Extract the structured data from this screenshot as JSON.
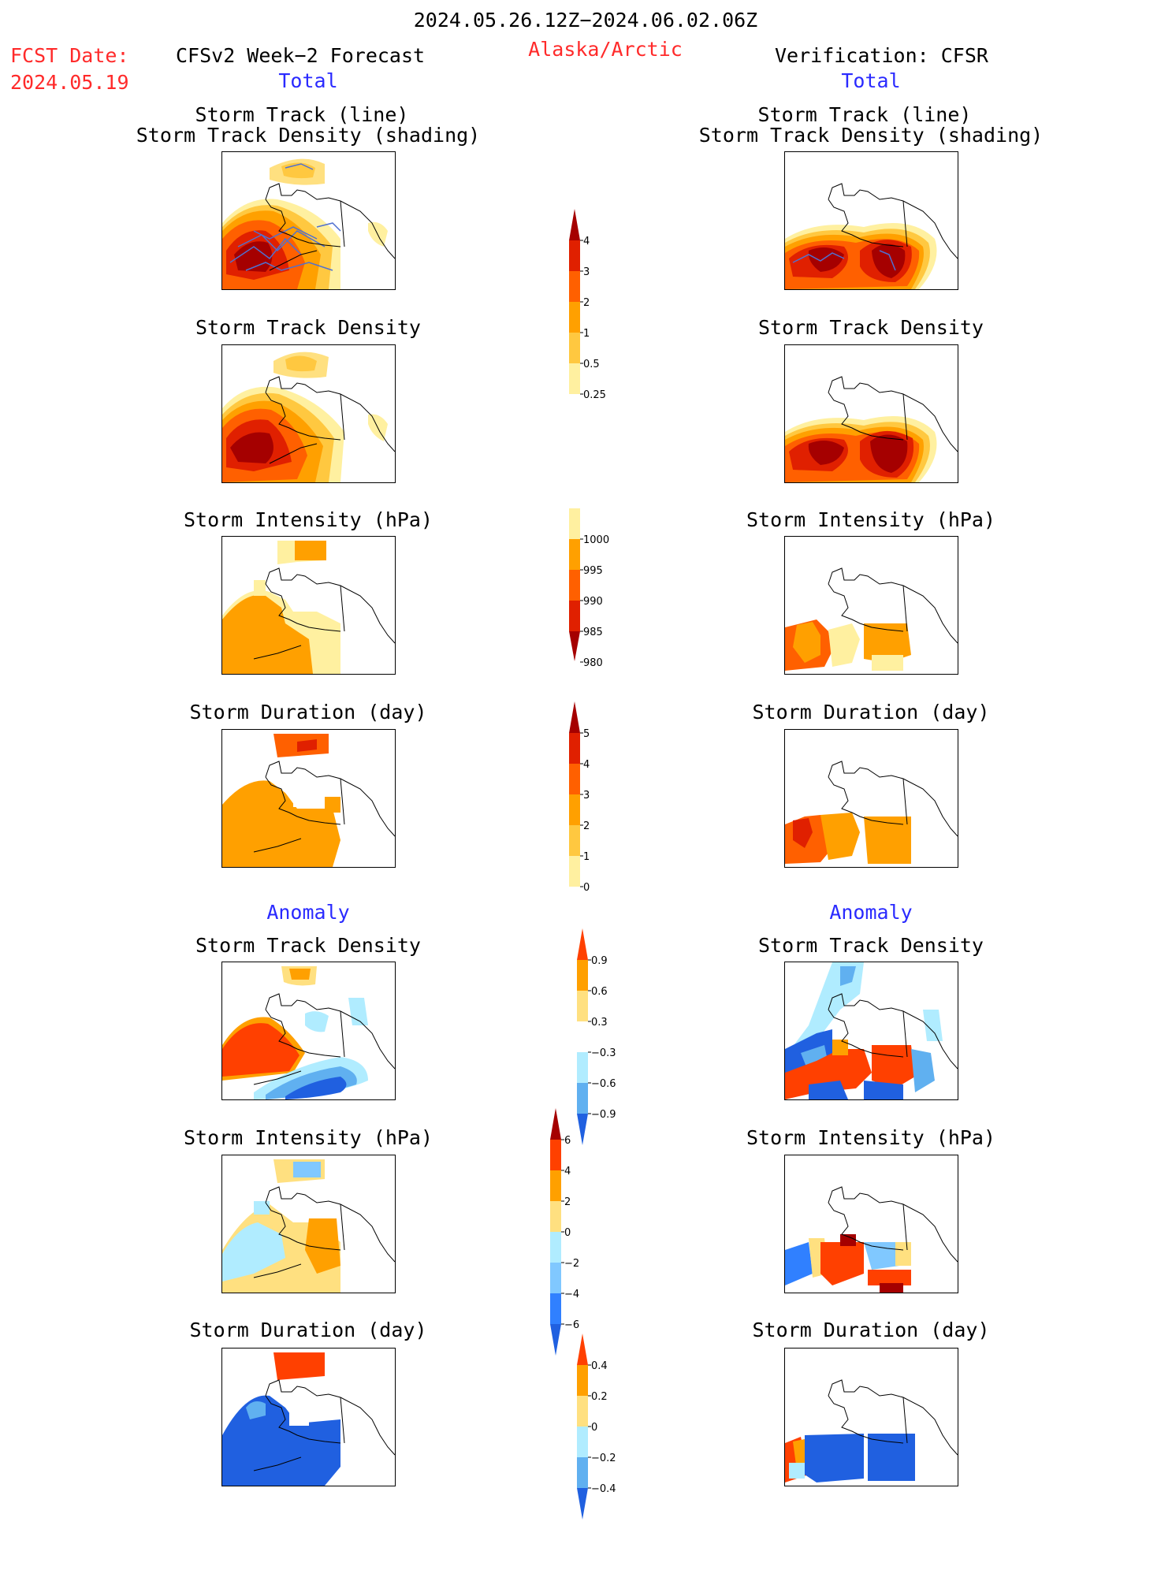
{
  "header": {
    "title": "2024.05.26.12Z−2024.06.02.06Z",
    "region": "Alaska/Arctic",
    "fcst_label": "FCST Date:",
    "fcst_date": "2024.05.19",
    "left_model": "CFSv2 Week−2 Forecast",
    "right_model": "Verification: CFSR",
    "total_label_left": "Total",
    "total_label_right": "Total",
    "anomaly_label_left": "Anomaly",
    "anomaly_label_right": "Anomaly"
  },
  "panels": {
    "track_title_1": "Storm Track (line)",
    "track_title_2": "Storm Track Density (shading)",
    "density_title": "Storm Track Density",
    "intensity_title": "Storm Intensity (hPa)",
    "duration_title": "Storm Duration (day)"
  },
  "colorbars": {
    "density": {
      "labels": [
        "4",
        "3",
        "2",
        "1",
        "0.5",
        "0.25"
      ],
      "colors": [
        "#a50000",
        "#e02000",
        "#ff6000",
        "#ffa000",
        "#ffc840",
        "#fff0a0"
      ]
    },
    "intensity": {
      "labels": [
        "1000",
        "995",
        "990",
        "985",
        "980"
      ],
      "colors": [
        "#fff0a0",
        "#ffa000",
        "#ff6000",
        "#e02000",
        "#a50000"
      ]
    },
    "duration": {
      "labels": [
        "5",
        "4",
        "3",
        "2",
        "1",
        "0"
      ],
      "colors": [
        "#a50000",
        "#e02000",
        "#ff6000",
        "#ffa000",
        "#ffc840",
        "#fff0a0"
      ]
    },
    "anom_density": {
      "labels": [
        "0.9",
        "0.6",
        "0.3",
        "−0.3",
        "−0.6",
        "−0.9"
      ],
      "colors": [
        "#ff4000",
        "#ffa000",
        "#ffe080",
        "#ffffff",
        "#b0ecff",
        "#60b0f0",
        "#2060e0"
      ]
    },
    "anom_intensity": {
      "labels": [
        "6",
        "4",
        "2",
        "0",
        "−2",
        "−4",
        "−6"
      ],
      "colors": [
        "#a50000",
        "#ff4000",
        "#ffa000",
        "#ffe080",
        "#b0ecff",
        "#80c8ff",
        "#3080ff",
        "#2060e0"
      ]
    },
    "anom_duration": {
      "labels": [
        "0.4",
        "0.2",
        "0",
        "−0.2",
        "−0.4"
      ],
      "colors": [
        "#ff4000",
        "#ffa000",
        "#ffe080",
        "#b0ecff",
        "#60b0f0",
        "#2060e0"
      ]
    }
  }
}
